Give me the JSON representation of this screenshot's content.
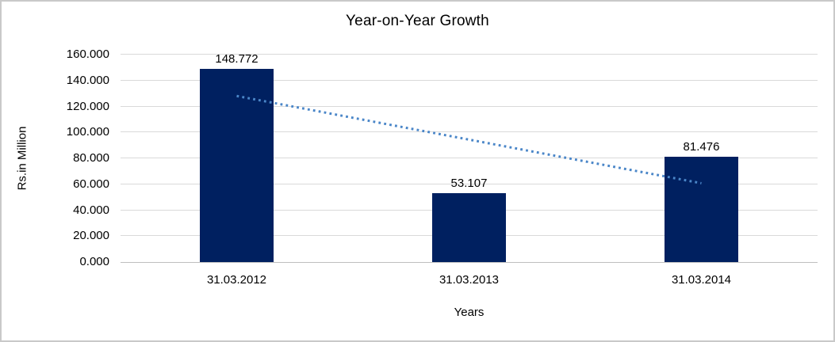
{
  "window": {
    "background": "#ffffff",
    "border_color": "#c9c9c9"
  },
  "chart_data": {
    "type": "bar",
    "title": "Year-on-Year Growth",
    "xlabel": "Years",
    "ylabel": "Rs.in Million",
    "categories": [
      "31.03.2012",
      "31.03.2013",
      "31.03.2014"
    ],
    "values": [
      148.772,
      53.107,
      81.476
    ],
    "bar_value_labels": [
      "148.772",
      "53.107",
      "81.476"
    ],
    "ylim": [
      0,
      160
    ],
    "ytick_values": [
      0,
      20,
      40,
      60,
      80,
      100,
      120,
      140,
      160
    ],
    "ytick_labels": [
      "0.000",
      "20.000",
      "40.000",
      "60.000",
      "80.000",
      "100.000",
      "120.000",
      "140.000",
      "160.000"
    ],
    "grid": "horizontal",
    "legend": "none",
    "bar_color": "#002060",
    "gridline_color": "#d9d9d9",
    "axis_line_color": "#bfbfbf",
    "text_color": "#000000",
    "trendline": {
      "type": "linear",
      "style": "dotted",
      "color": "#4a86c8",
      "start_value": 128.1,
      "end_value": 60.8
    }
  }
}
